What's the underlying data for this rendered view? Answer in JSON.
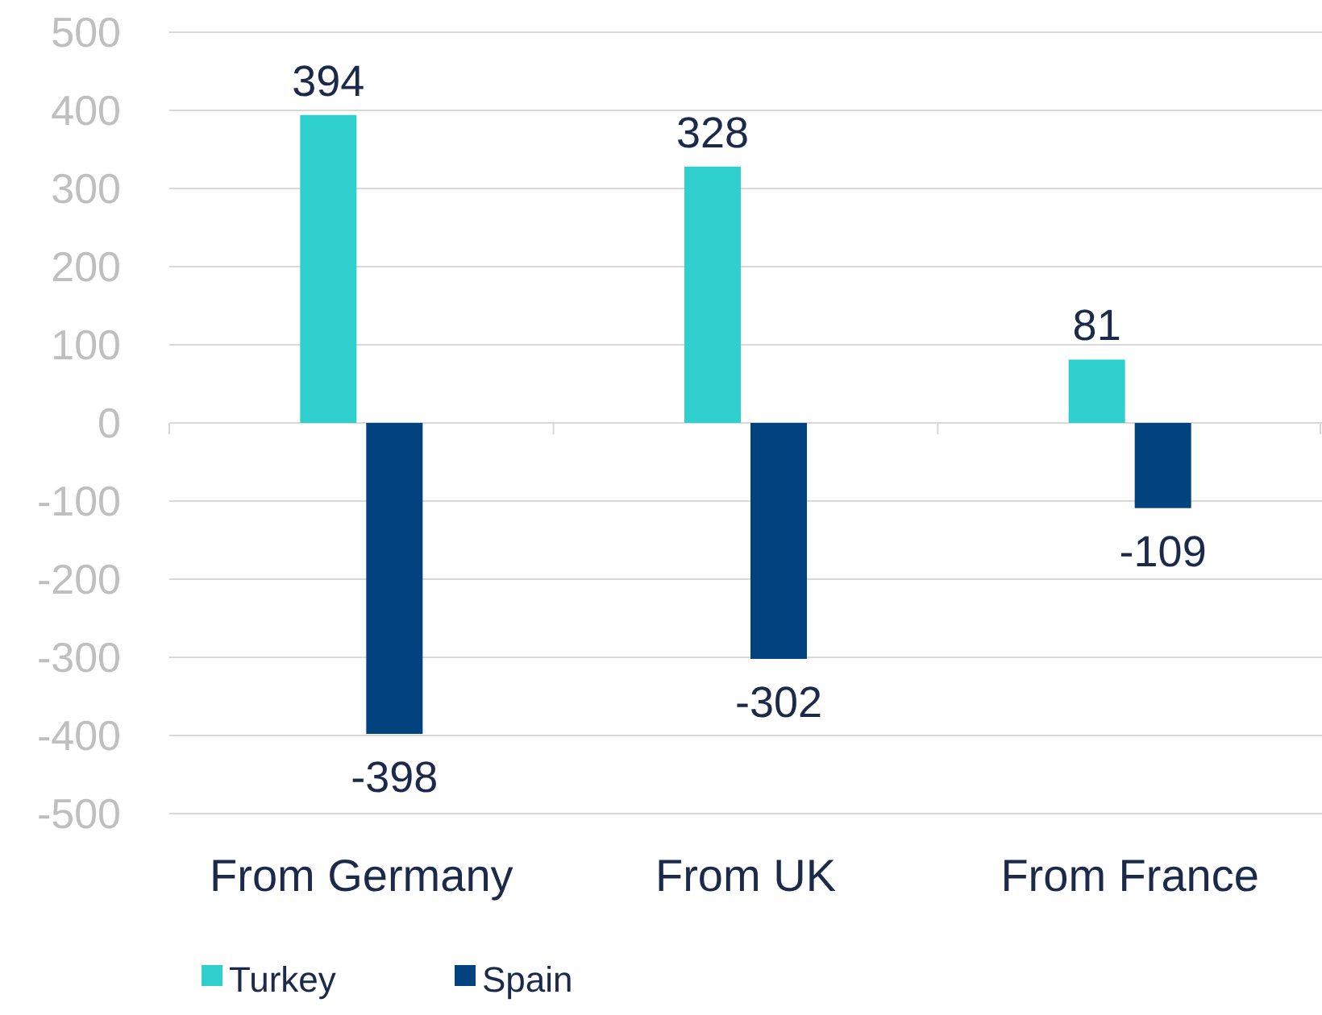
{
  "chart_data": {
    "type": "bar",
    "categories": [
      "From Germany",
      "From UK",
      "From France"
    ],
    "series": [
      {
        "name": "Turkey",
        "color": "#2ecfcc",
        "values": [
          394,
          328,
          81
        ]
      },
      {
        "name": "Spain",
        "color": "#00437f",
        "values": [
          -398,
          -302,
          -109
        ]
      }
    ],
    "ylim": [
      -500,
      500
    ],
    "yticks": [
      -500,
      -400,
      -300,
      -200,
      -100,
      0,
      100,
      200,
      300,
      400,
      500
    ],
    "grid": "y",
    "legend": "bottom",
    "data_labels": true
  }
}
